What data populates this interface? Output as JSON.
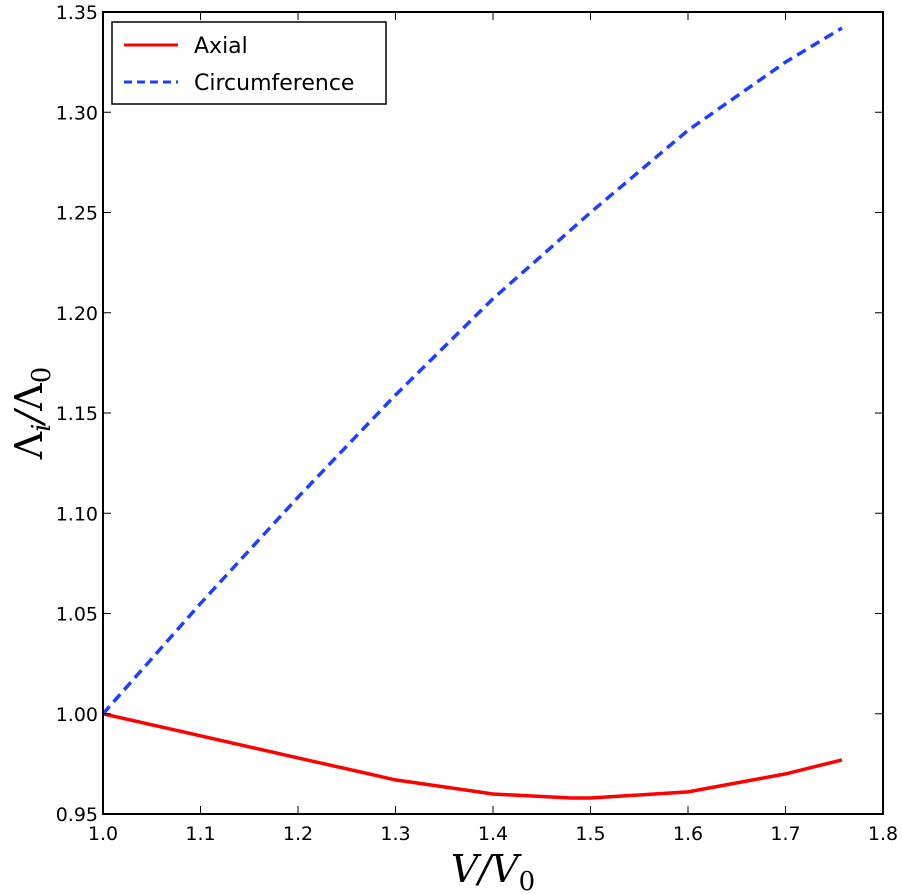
{
  "chart_data": {
    "type": "line",
    "xlabel": "V/V0",
    "ylabel": "Λi/Λ0",
    "xlim": [
      1.0,
      1.8
    ],
    "ylim": [
      0.95,
      1.35
    ],
    "xticks": [
      "1.0",
      "1.1",
      "1.2",
      "1.3",
      "1.4",
      "1.5",
      "1.6",
      "1.7",
      "1.8"
    ],
    "yticks": [
      "0.95",
      "1.00",
      "1.05",
      "1.10",
      "1.15",
      "1.20",
      "1.25",
      "1.30",
      "1.35"
    ],
    "grid": false,
    "legend_position": "top-left",
    "series": [
      {
        "name": "Axial",
        "color": "#ff0000",
        "style": "solid",
        "x": [
          1.0,
          1.1,
          1.2,
          1.3,
          1.4,
          1.48,
          1.5,
          1.6,
          1.7,
          1.758
        ],
        "y": [
          1.0,
          0.989,
          0.978,
          0.967,
          0.96,
          0.958,
          0.958,
          0.961,
          0.97,
          0.977
        ]
      },
      {
        "name": "Circumference",
        "color": "#1f3fff",
        "style": "dashed",
        "x": [
          1.0,
          1.1,
          1.2,
          1.3,
          1.4,
          1.5,
          1.6,
          1.7,
          1.758
        ],
        "y": [
          1.0,
          1.055,
          1.108,
          1.159,
          1.207,
          1.25,
          1.291,
          1.325,
          1.342
        ]
      }
    ]
  }
}
